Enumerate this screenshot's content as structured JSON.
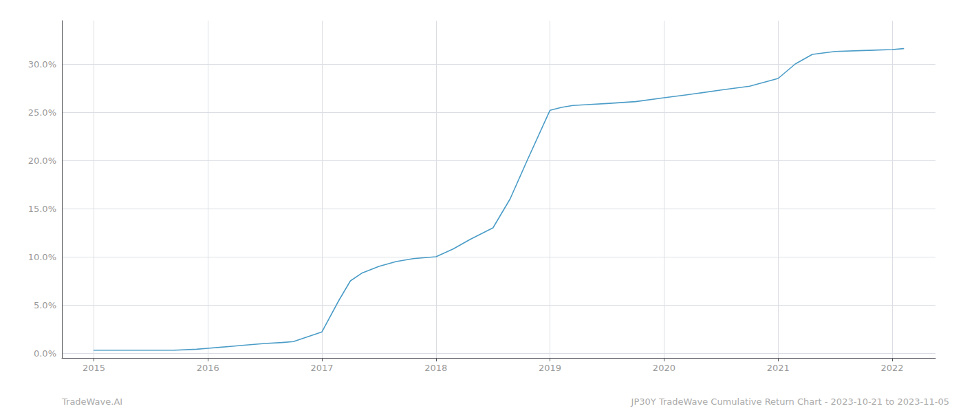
{
  "chart_data": {
    "type": "line",
    "x": [
      2015.0,
      2015.1,
      2015.2,
      2015.3,
      2015.5,
      2015.7,
      2015.9,
      2016.0,
      2016.1,
      2016.2,
      2016.3,
      2016.5,
      2016.65,
      2016.75,
      2017.0,
      2017.15,
      2017.25,
      2017.35,
      2017.5,
      2017.65,
      2017.8,
      2018.0,
      2018.15,
      2018.3,
      2018.5,
      2018.65,
      2018.8,
      2019.0,
      2019.1,
      2019.2,
      2019.35,
      2019.5,
      2019.75,
      2020.0,
      2020.2,
      2020.5,
      2020.75,
      2021.0,
      2021.15,
      2021.3,
      2021.5,
      2021.75,
      2022.0,
      2022.1
    ],
    "values": [
      0.003,
      0.003,
      0.003,
      0.003,
      0.003,
      0.003,
      0.004,
      0.005,
      0.006,
      0.007,
      0.008,
      0.01,
      0.011,
      0.012,
      0.022,
      0.055,
      0.075,
      0.083,
      0.09,
      0.095,
      0.098,
      0.1,
      0.108,
      0.118,
      0.13,
      0.16,
      0.2,
      0.252,
      0.255,
      0.257,
      0.258,
      0.259,
      0.261,
      0.265,
      0.268,
      0.273,
      0.277,
      0.285,
      0.3,
      0.31,
      0.313,
      0.314,
      0.315,
      0.316
    ],
    "color": "#4a9cc7",
    "xlim": [
      2014.72,
      2022.38
    ],
    "xticks": [
      2015,
      2016,
      2017,
      2018,
      2019,
      2020,
      2021,
      2022
    ],
    "ylim": [
      -0.005,
      0.345
    ],
    "yticks": [
      {
        "value": 0.0,
        "label": "0.0%"
      },
      {
        "value": 0.05,
        "label": "5.0%"
      },
      {
        "value": 0.1,
        "label": "10.0%"
      },
      {
        "value": 0.15,
        "label": "15.0%"
      },
      {
        "value": 0.2,
        "label": "20.0%"
      },
      {
        "value": 0.25,
        "label": "25.0%"
      },
      {
        "value": 0.3,
        "label": "30.0%"
      }
    ],
    "grid": true,
    "annotations": [
      "TradeWave.AI",
      "JP30Y TradeWave Cumulative Return Chart - 2023-10-21 to 2023-11-05"
    ]
  }
}
